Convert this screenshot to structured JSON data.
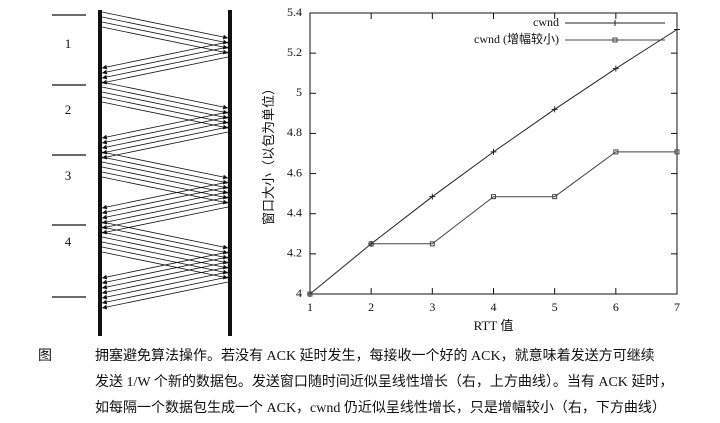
{
  "diagram": {
    "rounds": [
      "1",
      "2",
      "3",
      "4"
    ]
  },
  "chart_data": {
    "type": "line",
    "x": [
      1,
      2,
      3,
      4,
      5,
      6,
      7
    ],
    "series": [
      {
        "name": "cwnd",
        "color": "#222",
        "marker": "plus",
        "values": [
          4,
          4.25,
          4.485,
          4.708,
          4.92,
          5.123,
          5.318
        ]
      },
      {
        "name": "cwnd (增幅较小)",
        "color": "#444",
        "marker": "square",
        "values": [
          4,
          4.25,
          4.25,
          4.485,
          4.485,
          4.708,
          4.708
        ]
      }
    ],
    "xlim": [
      1,
      7
    ],
    "xticks": [
      1,
      2,
      3,
      4,
      5,
      6,
      7
    ],
    "ylim": [
      4,
      5.4
    ],
    "yticks": [
      4,
      4.2,
      4.4,
      4.6,
      4.8,
      5,
      5.2,
      5.4
    ],
    "xlabel": "RTT 值",
    "ylabel": "窗口大小（以包为单位）",
    "grid": false,
    "legend": "top-right"
  },
  "caption": {
    "label": "图",
    "lines": [
      "拥塞避免算法操作。若没有 ACK 延时发生，每接收一个好的 ACK，就意味着发送方可继续",
      "发送 1/W 个新的数据包。发送窗口随时间近似呈线性增长（右，上方曲线）。当有 ACK 延时，",
      "如每隔一个数据包生成一个 ACK，cwnd 仍近似呈线性增长，只是增幅较小（右，下方曲线）"
    ]
  }
}
